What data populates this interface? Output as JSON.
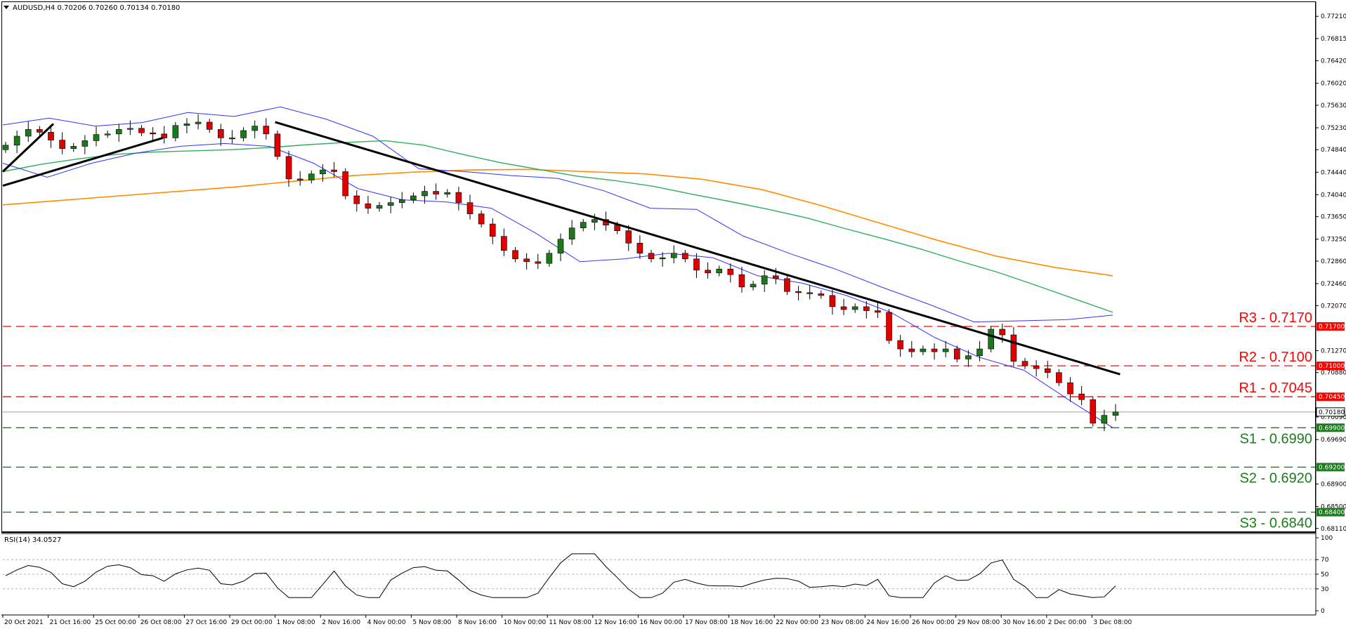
{
  "header": {
    "symbol_label": "AUDUSD,H4  0.70206 0.70260 0.70134 0.70180",
    "dropdown_icon": "triangle-down-icon"
  },
  "rsi_panel": {
    "label": "RSI(14) 34.0527",
    "ticks": [
      "100",
      "70",
      "50",
      "30",
      "0"
    ],
    "levels": [
      70,
      50,
      30
    ]
  },
  "price_axis_ticks": [
    "0.77210",
    "0.76815",
    "0.76420",
    "0.76020",
    "0.75630",
    "0.75230",
    "0.74840",
    "0.74440",
    "0.74040",
    "0.73650",
    "0.73250",
    "0.72860",
    "0.72460",
    "0.72070",
    "0.71270",
    "0.70880",
    "0.70090",
    "0.69690",
    "0.68900",
    "0.68500",
    "0.68110"
  ],
  "time_axis_ticks": [
    "20 Oct 2021",
    "21 Oct 16:00",
    "25 Oct 00:00",
    "26 Oct 08:00",
    "27 Oct 16:00",
    "29 Oct 00:00",
    "1 Nov 08:00",
    "2 Nov 16:00",
    "4 Nov 00:00",
    "5 Nov 08:00",
    "8 Nov 16:00",
    "10 Nov 00:00",
    "11 Nov 08:00",
    "12 Nov 16:00",
    "16 Nov 00:00",
    "17 Nov 08:00",
    "18 Nov 16:00",
    "22 Nov 00:00",
    "23 Nov 08:00",
    "24 Nov 16:00",
    "26 Nov 00:00",
    "29 Nov 08:00",
    "30 Nov 16:00",
    "2 Dec 00:00",
    "3 Dec 08:00"
  ],
  "levels": [
    {
      "name": "R3",
      "label": "R3 - 0.7170",
      "tag": "0.71700",
      "price": 0.717,
      "kind": "resistance"
    },
    {
      "name": "R2",
      "label": "R2 - 0.7100",
      "tag": "0.71000",
      "price": 0.71,
      "kind": "resistance"
    },
    {
      "name": "R1",
      "label": "R1 - 0.7045",
      "tag": "0.70450",
      "price": 0.7045,
      "kind": "resistance"
    },
    {
      "name": "S1",
      "label": "S1 - 0.6990",
      "tag": "0.69900",
      "price": 0.699,
      "kind": "support"
    },
    {
      "name": "S2",
      "label": "S2 - 0.6920",
      "tag": "0.69200",
      "price": 0.692,
      "kind": "support"
    },
    {
      "name": "S3",
      "label": "S3 - 0.6840",
      "tag": "0.68400",
      "price": 0.684,
      "kind": "support"
    }
  ],
  "current_price": {
    "tag": "0.70180",
    "price": 0.7018
  },
  "colors": {
    "resistance": "#ff0000",
    "support": "#1e7a1e",
    "bollinger": "#3333ff",
    "ma_short": "#2eaf5a",
    "ma_long": "#ff8c00",
    "trendline": "#000000",
    "bull_candle": "#1a7a1a",
    "bear_candle": "#e00000",
    "rsi_line": "#000000"
  },
  "chart_data": {
    "type": "candlestick",
    "symbol": "AUDUSD",
    "timeframe": "H4",
    "ohlc_header": {
      "open": 0.70206,
      "high": 0.7026,
      "low": 0.70134,
      "close": 0.7018
    },
    "ylim": [
      0.6812,
      0.774
    ],
    "grid": false,
    "x_start": "20 Oct 2021",
    "x_end": "3 Dec 2021",
    "close_path": [
      0.7492,
      0.7508,
      0.752,
      0.7515,
      0.7501,
      0.7486,
      0.749,
      0.75,
      0.7511,
      0.7512,
      0.752,
      0.7522,
      0.7514,
      0.7512,
      0.7505,
      0.7527,
      0.753,
      0.7533,
      0.752,
      0.7505,
      0.7505,
      0.7518,
      0.7526,
      0.7512,
      0.7472,
      0.7432,
      0.743,
      0.7441,
      0.7448,
      0.7445,
      0.7402,
      0.7388,
      0.738,
      0.7385,
      0.739,
      0.7395,
      0.7402,
      0.741,
      0.7405,
      0.7408,
      0.739,
      0.737,
      0.7352,
      0.733,
      0.7305,
      0.729,
      0.7285,
      0.7282,
      0.73,
      0.7325,
      0.7345,
      0.7355,
      0.736,
      0.735,
      0.734,
      0.7318,
      0.73,
      0.729,
      0.7292,
      0.73,
      0.729,
      0.727,
      0.7265,
      0.7272,
      0.7262,
      0.724,
      0.7245,
      0.726,
      0.7255,
      0.7232,
      0.723,
      0.7228,
      0.7225,
      0.7205,
      0.72,
      0.7205,
      0.7198,
      0.7195,
      0.7145,
      0.713,
      0.7125,
      0.713,
      0.7125,
      0.713,
      0.7112,
      0.7118,
      0.713,
      0.7165,
      0.7155,
      0.7108,
      0.71,
      0.7095,
      0.7088,
      0.707,
      0.705,
      0.704,
      0.6998,
      0.7012,
      0.7018
    ],
    "moving_average_short": [
      0.7445,
      0.7458,
      0.7468,
      0.7476,
      0.748,
      0.7482,
      0.7484,
      0.7488,
      0.7493,
      0.7497,
      0.75,
      0.7492,
      0.7476,
      0.7461,
      0.7449,
      0.7437,
      0.7429,
      0.7419,
      0.7405,
      0.7392,
      0.7378,
      0.7363,
      0.7344,
      0.7326,
      0.7307,
      0.7286,
      0.7266,
      0.7243,
      0.7219,
      0.7195
    ],
    "moving_average_long": [
      0.7386,
      0.7394,
      0.7402,
      0.741,
      0.7418,
      0.7428,
      0.7438,
      0.7444,
      0.7448,
      0.7449,
      0.7445,
      0.7441,
      0.7431,
      0.7413,
      0.7385,
      0.7354,
      0.7323,
      0.7295,
      0.7275,
      0.726
    ],
    "bollinger_upper": [
      0.7528,
      0.754,
      0.7526,
      0.7532,
      0.755,
      0.7543,
      0.756,
      0.7538,
      0.7508,
      0.745,
      0.7445,
      0.7438,
      0.7433,
      0.7411,
      0.738,
      0.7378,
      0.7331,
      0.73,
      0.7272,
      0.724,
      0.721,
      0.7178,
      0.718,
      0.7182,
      0.719
    ],
    "bollinger_lower": [
      0.746,
      0.7435,
      0.746,
      0.7478,
      0.749,
      0.7495,
      0.749,
      0.746,
      0.7415,
      0.7395,
      0.7391,
      0.738,
      0.7336,
      0.7285,
      0.729,
      0.73,
      0.7292,
      0.726,
      0.7247,
      0.7225,
      0.7195,
      0.715,
      0.7115,
      0.7092,
      0.704,
      0.699
    ],
    "trendlines": [
      {
        "name": "rising-support",
        "points": [
          [
            "20 Oct 2021",
            0.742
          ],
          [
            "26 Oct 08:00",
            0.7505
          ]
        ]
      },
      {
        "name": "short-rising",
        "points": [
          [
            "20 Oct 2021",
            0.7445
          ],
          [
            "21 Oct 16:00",
            0.753
          ]
        ]
      },
      {
        "name": "falling-resistance",
        "points": [
          [
            "1 Nov 08:00",
            0.7533
          ],
          [
            "3 Dec 08:00",
            0.7085
          ]
        ]
      }
    ],
    "rsi": {
      "period": 14,
      "last": 34.0527,
      "range": [
        0,
        100
      ]
    }
  }
}
